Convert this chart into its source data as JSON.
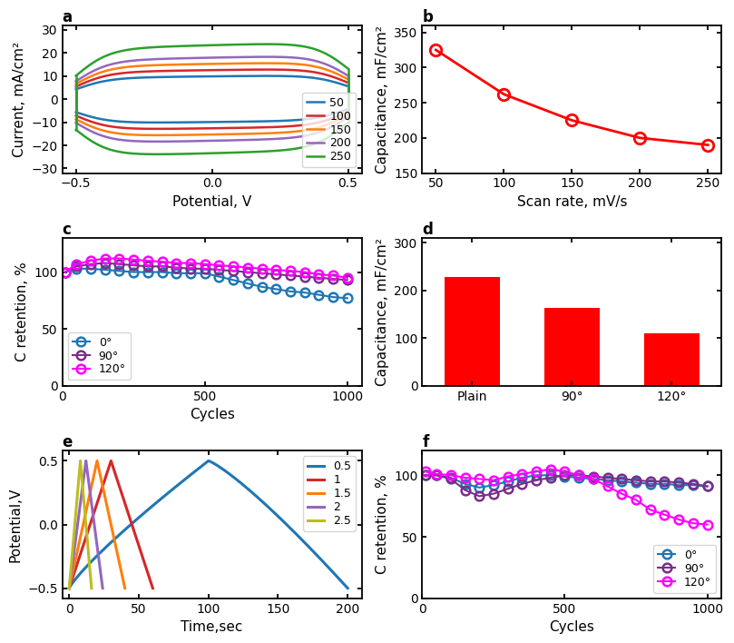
{
  "panel_a": {
    "title": "a",
    "xlabel": "Potential, V",
    "ylabel": "Current, mA/cm²",
    "xlim": [
      -0.55,
      0.55
    ],
    "ylim": [
      -32,
      32
    ],
    "xticks": [
      -0.5,
      0.0,
      0.5
    ],
    "yticks": [
      -30,
      -20,
      -10,
      0,
      10,
      20,
      30
    ],
    "scan_rates": [
      50,
      100,
      150,
      200,
      250
    ],
    "colors": [
      "#1f77b4",
      "#d62728",
      "#ff7f0e",
      "#9467bd",
      "#2ca02c"
    ],
    "amplitudes": [
      11,
      14,
      17,
      20,
      26
    ]
  },
  "panel_b": {
    "title": "b",
    "xlabel": "Scan rate, mV/s",
    "ylabel": "Capacitance, mF/cm²",
    "xlim": [
      40,
      260
    ],
    "ylim": [
      150,
      360
    ],
    "xticks": [
      50,
      100,
      150,
      200,
      250
    ],
    "yticks": [
      150,
      200,
      250,
      300,
      350
    ],
    "x": [
      50,
      100,
      150,
      200,
      250
    ],
    "y": [
      325,
      262,
      225,
      200,
      190
    ],
    "color": "#ff0000"
  },
  "panel_c": {
    "title": "c",
    "xlabel": "Cycles",
    "ylabel": "C retention, %",
    "xlim": [
      0,
      1050
    ],
    "ylim": [
      0,
      130
    ],
    "xticks": [
      0,
      500,
      1000
    ],
    "yticks": [
      0,
      50,
      100
    ],
    "labels": [
      "0°",
      "90°",
      "120°"
    ],
    "colors": [
      "#1f77b4",
      "#7b2d8b",
      "#ff00ff"
    ],
    "cycles_0": [
      10,
      50,
      100,
      150,
      200,
      250,
      300,
      350,
      400,
      450,
      500,
      550,
      600,
      650,
      700,
      750,
      800,
      850,
      900,
      950,
      1000
    ],
    "ret_0": [
      100,
      103,
      103,
      102,
      101,
      100,
      100,
      100,
      99,
      99,
      99,
      96,
      93,
      90,
      87,
      85,
      83,
      82,
      80,
      78,
      77
    ],
    "cycles_90": [
      10,
      50,
      100,
      150,
      200,
      250,
      300,
      350,
      400,
      450,
      500,
      550,
      600,
      650,
      700,
      750,
      800,
      850,
      900,
      950,
      1000
    ],
    "ret_90": [
      100,
      105,
      107,
      108,
      107,
      106,
      105,
      105,
      104,
      103,
      103,
      102,
      101,
      100,
      99,
      98,
      97,
      96,
      95,
      94,
      93
    ],
    "cycles_120": [
      10,
      50,
      100,
      150,
      200,
      250,
      300,
      350,
      400,
      450,
      500,
      550,
      600,
      650,
      700,
      750,
      800,
      850,
      900,
      950,
      1000
    ],
    "ret_120": [
      100,
      107,
      110,
      112,
      112,
      111,
      110,
      109,
      108,
      108,
      107,
      106,
      105,
      104,
      103,
      102,
      101,
      100,
      98,
      97,
      95
    ]
  },
  "panel_d": {
    "title": "d",
    "xlabel": "",
    "ylabel": "Capacitance, mF/cm²",
    "xlim": [
      -0.5,
      2.5
    ],
    "ylim": [
      0,
      310
    ],
    "yticks": [
      0,
      100,
      200,
      300
    ],
    "categories": [
      "Plain",
      "90°",
      "120°"
    ],
    "values": [
      228,
      163,
      110
    ],
    "bar_color": "#ff0000"
  },
  "panel_e": {
    "title": "e",
    "xlabel": "Time,sec",
    "ylabel": "Potential,V",
    "xlim": [
      -5,
      210
    ],
    "ylim": [
      -0.58,
      0.58
    ],
    "xticks": [
      0,
      50,
      100,
      150,
      200
    ],
    "yticks": [
      -0.5,
      0,
      0.5
    ],
    "currents": [
      "0.5",
      "1",
      "1.5",
      "2",
      "2.5"
    ],
    "colors": [
      "#1f77b4",
      "#d62728",
      "#ff7f0e",
      "#9467bd",
      "#bcbd22"
    ],
    "charge_times": [
      100,
      30,
      20,
      12,
      8
    ],
    "discharge_times": [
      100,
      30,
      20,
      12,
      8
    ]
  },
  "panel_f": {
    "title": "f",
    "xlabel": "Cycles",
    "ylabel": "C retention, %",
    "xlim": [
      0,
      1050
    ],
    "ylim": [
      0,
      120
    ],
    "xticks": [
      0,
      500,
      1000
    ],
    "yticks": [
      0,
      50,
      100
    ],
    "labels": [
      "0°",
      "90°",
      "120°"
    ],
    "colors": [
      "#1f77b4",
      "#7b2d8b",
      "#ff00ff"
    ],
    "cycles_0": [
      10,
      50,
      100,
      150,
      200,
      250,
      300,
      350,
      400,
      450,
      500,
      550,
      600,
      650,
      700,
      750,
      800,
      850,
      900,
      950,
      1000
    ],
    "ret_0": [
      100,
      100,
      98,
      93,
      90,
      92,
      95,
      98,
      100,
      100,
      99,
      98,
      97,
      96,
      95,
      94,
      93,
      93,
      92,
      92,
      91
    ],
    "cycles_90": [
      10,
      50,
      100,
      150,
      200,
      250,
      300,
      350,
      400,
      450,
      500,
      550,
      600,
      650,
      700,
      750,
      800,
      850,
      900,
      950,
      1000
    ],
    "ret_90": [
      100,
      100,
      97,
      88,
      83,
      85,
      89,
      93,
      96,
      98,
      100,
      100,
      99,
      98,
      97,
      96,
      95,
      95,
      94,
      93,
      91
    ],
    "cycles_120": [
      10,
      50,
      100,
      150,
      200,
      250,
      300,
      350,
      400,
      450,
      500,
      550,
      600,
      650,
      700,
      750,
      800,
      850,
      900,
      950,
      1000
    ],
    "ret_120": [
      103,
      101,
      100,
      98,
      97,
      96,
      99,
      101,
      103,
      105,
      103,
      100,
      97,
      91,
      85,
      80,
      72,
      68,
      64,
      61,
      60
    ]
  },
  "background_color": "#ffffff",
  "font_size": 10,
  "label_font_size": 11
}
